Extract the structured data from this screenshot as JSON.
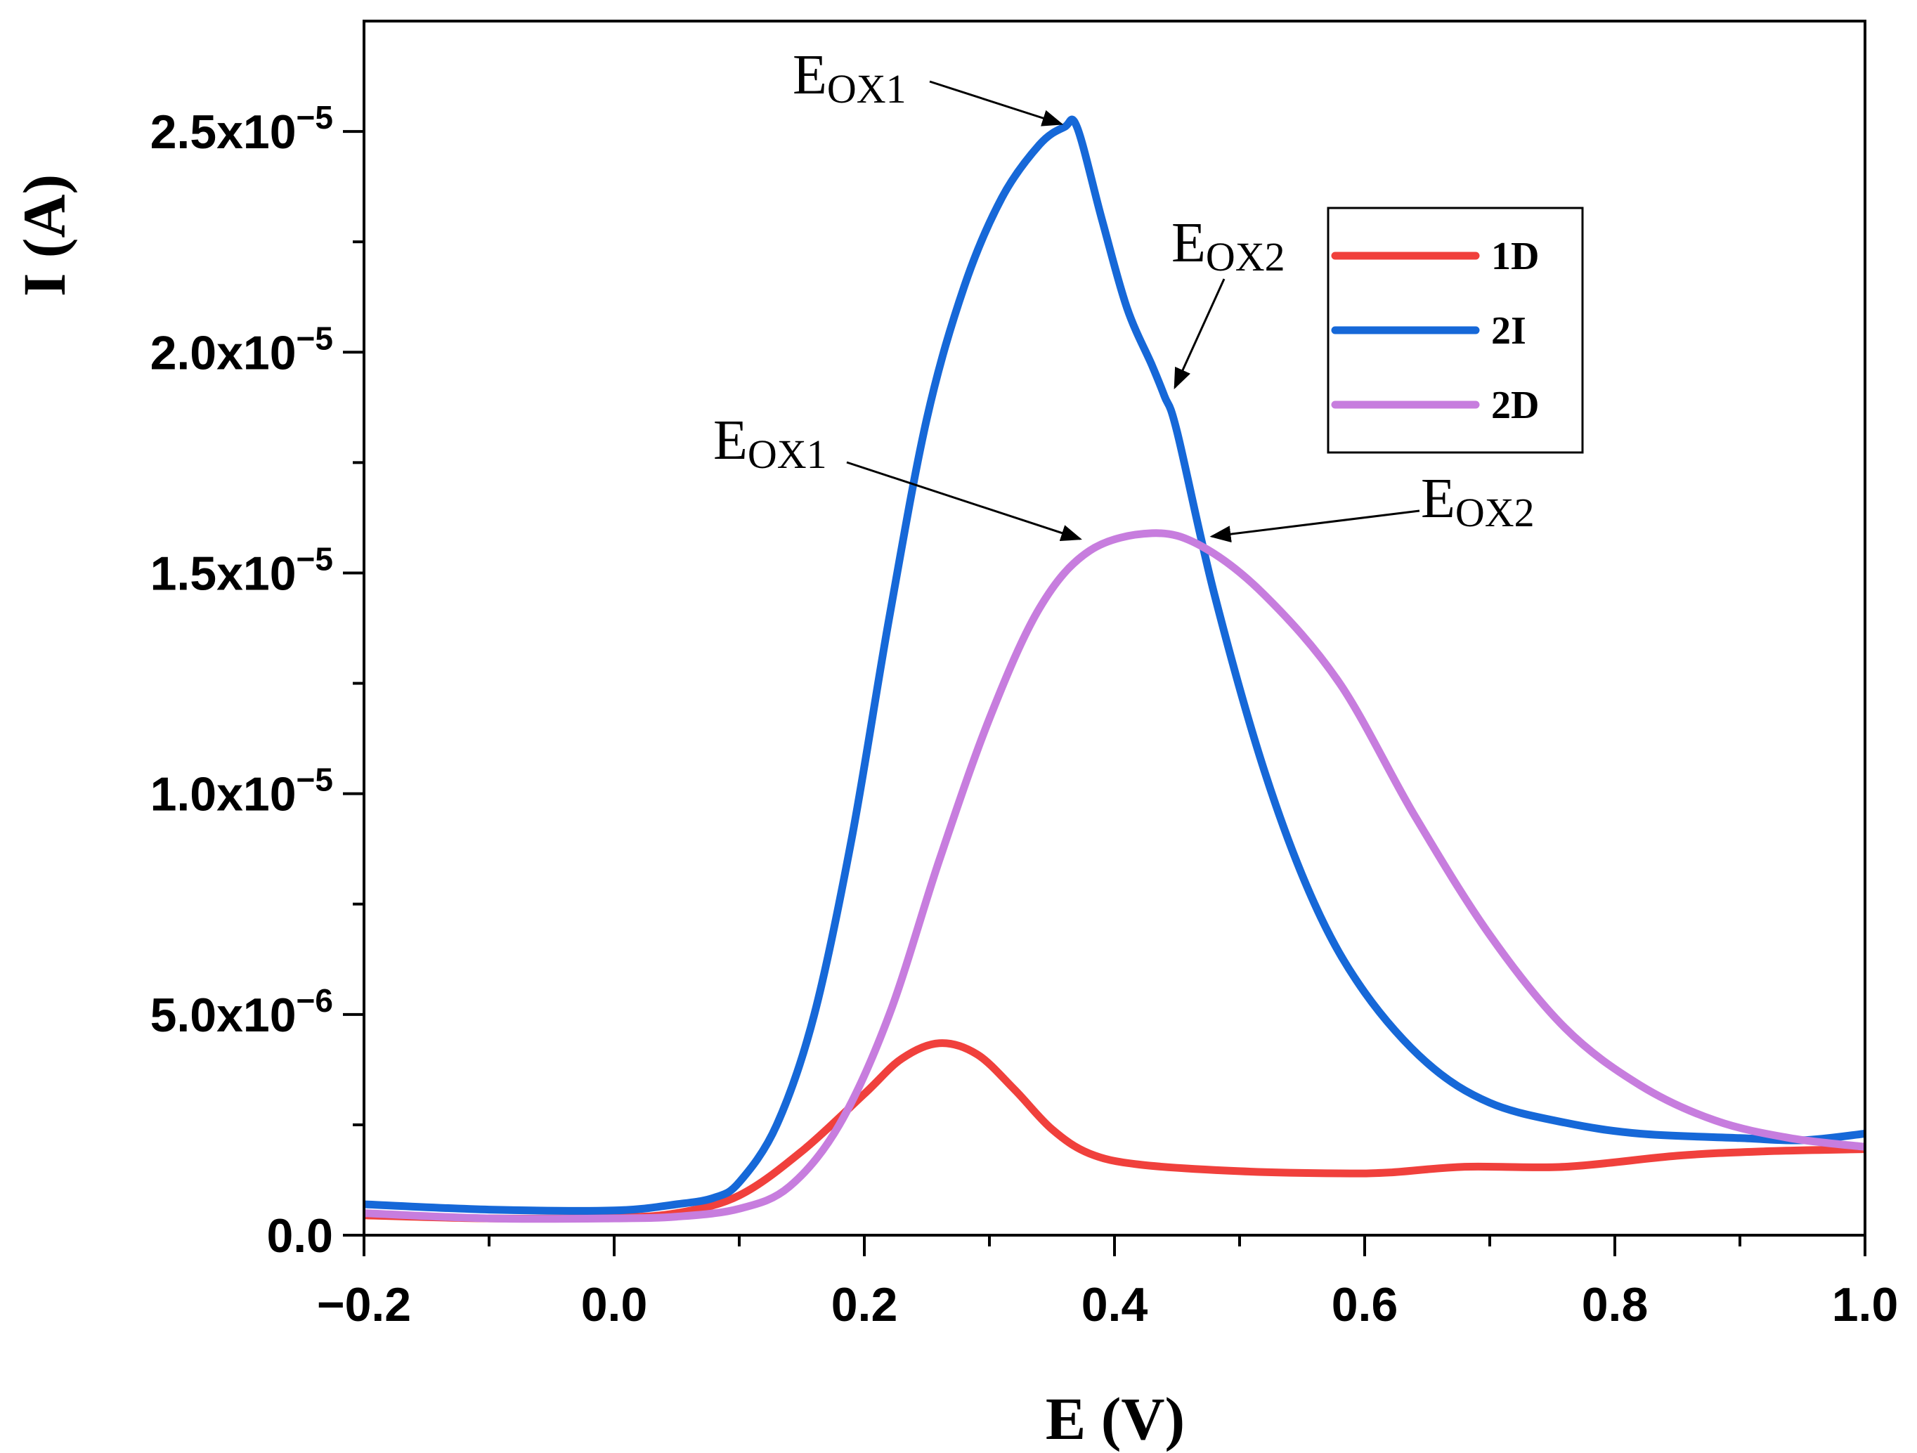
{
  "chart_data": {
    "type": "line",
    "xlabel": "E (V)",
    "ylabel": "I (A)",
    "xlim": [
      -0.2,
      1.0
    ],
    "ylim": [
      0,
      2.75e-05
    ],
    "x_ticks": [
      -0.2,
      0.0,
      0.2,
      0.4,
      0.6,
      0.8,
      1.0
    ],
    "x_tick_labels": [
      "−0.2",
      "0.0",
      "0.2",
      "0.4",
      "0.6",
      "0.8",
      "1.0"
    ],
    "y_ticks": [
      0,
      5e-06,
      1e-05,
      1.5e-05,
      2e-05,
      2.5e-05
    ],
    "y_tick_labels": [
      {
        "mantissa": "0.0",
        "exponent": ""
      },
      {
        "mantissa": "5.0x10",
        "exponent": "−6"
      },
      {
        "mantissa": "1.0x10",
        "exponent": "−5"
      },
      {
        "mantissa": "1.5x10",
        "exponent": "−5"
      },
      {
        "mantissa": "2.0x10",
        "exponent": "−5"
      },
      {
        "mantissa": "2.5x10",
        "exponent": "−5"
      }
    ],
    "legend_position": "top-right",
    "series": [
      {
        "name": "1D",
        "color": "#f0403c",
        "points": [
          [
            -0.2,
            4.5e-07
          ],
          [
            -0.1,
            3.8e-07
          ],
          [
            0.0,
            4e-07
          ],
          [
            0.05,
            5e-07
          ],
          [
            0.1,
            9e-07
          ],
          [
            0.15,
            1.9e-06
          ],
          [
            0.2,
            3.2e-06
          ],
          [
            0.23,
            4e-06
          ],
          [
            0.26,
            4.35e-06
          ],
          [
            0.29,
            4.1e-06
          ],
          [
            0.32,
            3.3e-06
          ],
          [
            0.35,
            2.4e-06
          ],
          [
            0.38,
            1.85e-06
          ],
          [
            0.42,
            1.6e-06
          ],
          [
            0.5,
            1.45e-06
          ],
          [
            0.58,
            1.4e-06
          ],
          [
            0.62,
            1.42e-06
          ],
          [
            0.68,
            1.55e-06
          ],
          [
            0.76,
            1.55e-06
          ],
          [
            0.85,
            1.8e-06
          ],
          [
            0.92,
            1.9e-06
          ],
          [
            1.0,
            1.95e-06
          ]
        ]
      },
      {
        "name": "2I",
        "color": "#1668d8",
        "points": [
          [
            -0.2,
            7e-07
          ],
          [
            -0.1,
            5.8e-07
          ],
          [
            0.0,
            5.6e-07
          ],
          [
            0.05,
            7e-07
          ],
          [
            0.08,
            8.5e-07
          ],
          [
            0.1,
            1.2e-06
          ],
          [
            0.13,
            2.5e-06
          ],
          [
            0.16,
            5e-06
          ],
          [
            0.19,
            9e-06
          ],
          [
            0.22,
            1.4e-05
          ],
          [
            0.25,
            1.85e-05
          ],
          [
            0.28,
            2.15e-05
          ],
          [
            0.31,
            2.35e-05
          ],
          [
            0.34,
            2.47e-05
          ],
          [
            0.36,
            2.51e-05
          ],
          [
            0.37,
            2.51e-05
          ],
          [
            0.39,
            2.3e-05
          ],
          [
            0.41,
            2.1e-05
          ],
          [
            0.43,
            1.97e-05
          ],
          [
            0.44,
            1.9e-05
          ],
          [
            0.45,
            1.82e-05
          ],
          [
            0.48,
            1.45e-05
          ],
          [
            0.52,
            1.05e-05
          ],
          [
            0.56,
            7.5e-06
          ],
          [
            0.6,
            5.5e-06
          ],
          [
            0.65,
            3.9e-06
          ],
          [
            0.7,
            3e-06
          ],
          [
            0.76,
            2.55e-06
          ],
          [
            0.82,
            2.3e-06
          ],
          [
            0.9,
            2.2e-06
          ],
          [
            0.95,
            2.15e-06
          ],
          [
            1.0,
            2.3e-06
          ]
        ]
      },
      {
        "name": "2D",
        "color": "#c77dde",
        "points": [
          [
            -0.2,
            5e-07
          ],
          [
            -0.1,
            3.8e-07
          ],
          [
            0.0,
            3.8e-07
          ],
          [
            0.05,
            4.2e-07
          ],
          [
            0.1,
            6e-07
          ],
          [
            0.14,
            1.1e-06
          ],
          [
            0.18,
            2.5e-06
          ],
          [
            0.22,
            5e-06
          ],
          [
            0.26,
            8.5e-06
          ],
          [
            0.3,
            1.17e-05
          ],
          [
            0.34,
            1.42e-05
          ],
          [
            0.38,
            1.55e-05
          ],
          [
            0.43,
            1.59e-05
          ],
          [
            0.47,
            1.56e-05
          ],
          [
            0.52,
            1.45e-05
          ],
          [
            0.58,
            1.25e-05
          ],
          [
            0.64,
            9.5e-06
          ],
          [
            0.7,
            6.8e-06
          ],
          [
            0.76,
            4.7e-06
          ],
          [
            0.82,
            3.4e-06
          ],
          [
            0.88,
            2.6e-06
          ],
          [
            0.94,
            2.2e-06
          ],
          [
            1.0,
            2e-06
          ]
        ]
      }
    ],
    "annotations": [
      {
        "main": "E",
        "sub": "OX1",
        "target": [
          0.365,
          2.51e-05
        ]
      },
      {
        "main": "E",
        "sub": "OX2",
        "target": [
          0.445,
          1.9e-05
        ]
      },
      {
        "main": "E",
        "sub": "OX1",
        "target": [
          0.38,
          1.57e-05
        ]
      },
      {
        "main": "E",
        "sub": "OX2",
        "target": [
          0.47,
          1.58e-05
        ]
      }
    ]
  }
}
